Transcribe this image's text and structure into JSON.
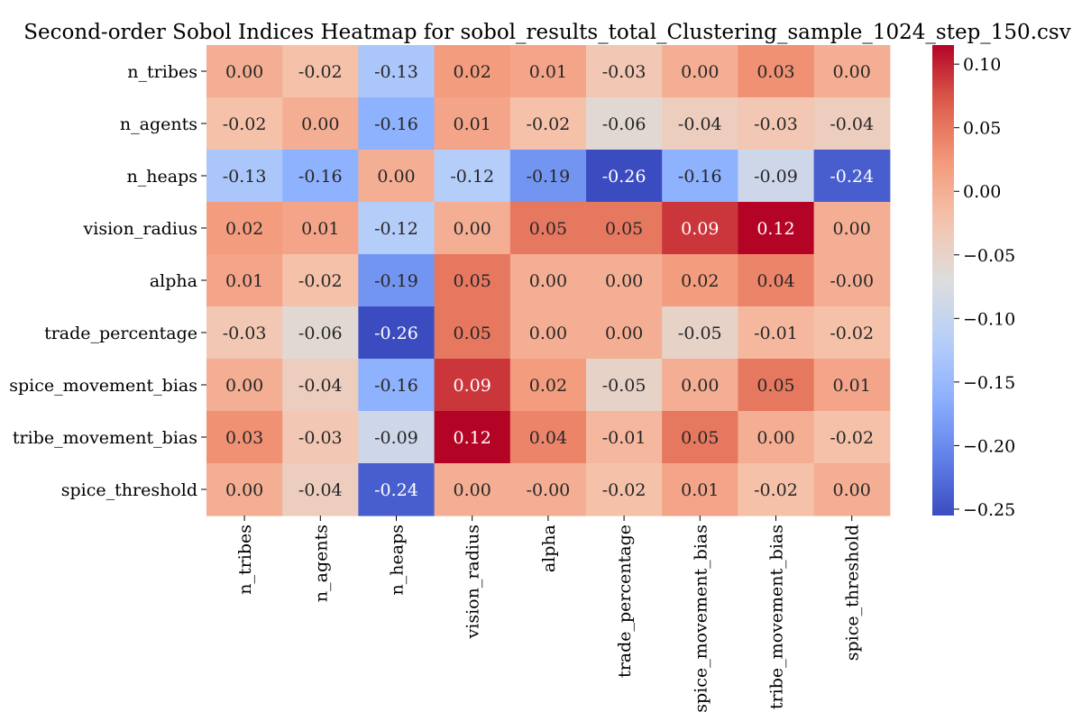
{
  "chart_data": {
    "type": "heatmap",
    "title": "Second-order Sobol Indices Heatmap for sobol_results_total_Clustering_sample_1024_step_150.csv",
    "rows": [
      "n_tribes",
      "n_agents",
      "n_heaps",
      "vision_radius",
      "alpha",
      "trade_percentage",
      "spice_movement_bias",
      "tribe_movement_bias",
      "spice_threshold"
    ],
    "columns": [
      "n_tribes",
      "n_agents",
      "n_heaps",
      "vision_radius",
      "alpha",
      "trade_percentage",
      "spice_movement_bias",
      "tribe_movement_bias",
      "spice_threshold"
    ],
    "values": [
      [
        0.0,
        -0.02,
        -0.13,
        0.02,
        0.01,
        -0.03,
        0.0,
        0.03,
        0.0
      ],
      [
        -0.02,
        0.0,
        -0.16,
        0.01,
        -0.02,
        -0.06,
        -0.04,
        -0.03,
        -0.04
      ],
      [
        -0.13,
        -0.16,
        0.0,
        -0.12,
        -0.19,
        -0.26,
        -0.16,
        -0.09,
        -0.24
      ],
      [
        0.02,
        0.01,
        -0.12,
        0.0,
        0.05,
        0.05,
        0.09,
        0.12,
        0.0
      ],
      [
        0.01,
        -0.02,
        -0.19,
        0.05,
        0.0,
        0.0,
        0.02,
        0.04,
        -0.0
      ],
      [
        -0.03,
        -0.06,
        -0.26,
        0.05,
        0.0,
        0.0,
        -0.05,
        -0.01,
        -0.02
      ],
      [
        0.0,
        -0.04,
        -0.16,
        0.09,
        0.02,
        -0.05,
        0.0,
        0.05,
        0.01
      ],
      [
        0.03,
        -0.03,
        -0.09,
        0.12,
        0.04,
        -0.01,
        0.05,
        0.0,
        -0.02
      ],
      [
        0.0,
        -0.04,
        -0.24,
        0.0,
        -0.0,
        -0.02,
        0.01,
        -0.02,
        0.0
      ]
    ],
    "cell_labels": [
      [
        "0.00",
        "-0.02",
        "-0.13",
        "0.02",
        "0.01",
        "-0.03",
        "0.00",
        "0.03",
        "0.00"
      ],
      [
        "-0.02",
        "0.00",
        "-0.16",
        "0.01",
        "-0.02",
        "-0.06",
        "-0.04",
        "-0.03",
        "-0.04"
      ],
      [
        "-0.13",
        "-0.16",
        "0.00",
        "-0.12",
        "-0.19",
        "-0.26",
        "-0.16",
        "-0.09",
        "-0.24"
      ],
      [
        "0.02",
        "0.01",
        "-0.12",
        "0.00",
        "0.05",
        "0.05",
        "0.09",
        "0.12",
        "0.00"
      ],
      [
        "0.01",
        "-0.02",
        "-0.19",
        "0.05",
        "0.00",
        "0.00",
        "0.02",
        "0.04",
        "-0.00"
      ],
      [
        "-0.03",
        "-0.06",
        "-0.26",
        "0.05",
        "0.00",
        "0.00",
        "-0.05",
        "-0.01",
        "-0.02"
      ],
      [
        "0.00",
        "-0.04",
        "-0.16",
        "0.09",
        "0.02",
        "-0.05",
        "0.00",
        "0.05",
        "0.01"
      ],
      [
        "0.03",
        "-0.03",
        "-0.09",
        "0.12",
        "0.04",
        "-0.01",
        "0.05",
        "0.00",
        "-0.02"
      ],
      [
        "0.00",
        "-0.04",
        "-0.24",
        "0.00",
        "-0.00",
        "-0.02",
        "0.01",
        "-0.02",
        "0.00"
      ]
    ],
    "colormap": "coolwarm",
    "vmin": -0.255,
    "vmax": 0.115,
    "colorbar": {
      "ticks": [
        0.1,
        0.05,
        0.0,
        -0.05,
        -0.1,
        -0.15,
        -0.2,
        -0.25
      ],
      "tick_labels": [
        "0.10",
        "0.05",
        "0.00",
        "−0.05",
        "−0.10",
        "−0.15",
        "−0.20",
        "−0.25"
      ],
      "placement": "right"
    }
  }
}
